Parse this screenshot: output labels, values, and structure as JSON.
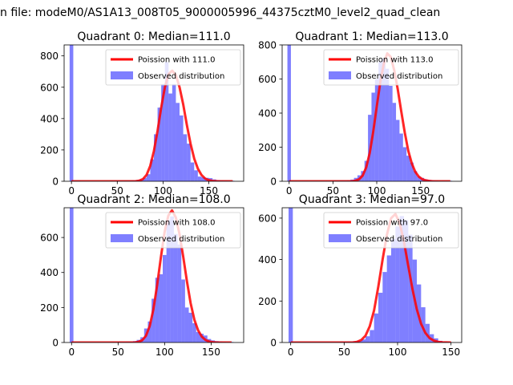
{
  "figure_title": "n file: modeM0/AS1A13_008T05_9000005996_44375cztM0_level2_quad_clean",
  "colors": {
    "poisson": "#ff0000",
    "histogram": "#0000ff",
    "axes": "#000000",
    "background": "#ffffff"
  },
  "chart_data": [
    {
      "type": "bar",
      "title": "Quadrant 0: Median=111.0",
      "xlabel": "",
      "ylabel": "",
      "xlim": [
        -8,
        188
      ],
      "ylim": [
        0,
        870
      ],
      "xticks": [
        0,
        50,
        100,
        150
      ],
      "yticks": [
        0,
        200,
        400,
        600,
        800
      ],
      "grid": false,
      "legend_position": "top-right",
      "legend": [
        "Poission with 111.0",
        "Observed distribution"
      ],
      "median": 111.0,
      "peak": 705,
      "bin_width": 4,
      "series": [
        {
          "name": "Observed distribution",
          "x": [
            0,
            4,
            8,
            12,
            16,
            20,
            24,
            28,
            32,
            36,
            40,
            44,
            48,
            52,
            56,
            60,
            64,
            68,
            72,
            76,
            80,
            84,
            88,
            92,
            96,
            100,
            104,
            108,
            112,
            116,
            120,
            124,
            128,
            132,
            136,
            140,
            144,
            148,
            152,
            156,
            160,
            164,
            168,
            172,
            176
          ],
          "values": [
            870,
            4,
            4,
            3,
            3,
            3,
            3,
            3,
            3,
            3,
            3,
            4,
            4,
            4,
            4,
            5,
            5,
            6,
            8,
            12,
            22,
            45,
            140,
            300,
            470,
            620,
            760,
            560,
            620,
            500,
            420,
            300,
            240,
            120,
            70,
            30,
            25,
            22,
            20,
            12,
            8,
            6,
            5,
            4,
            3
          ]
        },
        {
          "name": "Poission with 111.0",
          "type": "line",
          "x": [
            0,
            70,
            74,
            78,
            82,
            86,
            90,
            94,
            98,
            102,
            106,
            110,
            114,
            118,
            122,
            126,
            130,
            134,
            138,
            142,
            146,
            150,
            154,
            160,
            176
          ],
          "values": [
            0,
            0,
            4,
            14,
            41,
            98,
            193,
            323,
            470,
            600,
            685,
            705,
            678,
            600,
            490,
            360,
            240,
            145,
            80,
            40,
            17,
            7,
            2,
            0,
            0
          ]
        }
      ]
    },
    {
      "type": "bar",
      "title": "Quadrant 1: Median=113.0",
      "xlabel": "",
      "ylabel": "",
      "xlim": [
        -8,
        197
      ],
      "ylim": [
        0,
        800
      ],
      "xticks": [
        0,
        50,
        100,
        150
      ],
      "yticks": [
        0,
        200,
        400,
        600,
        800
      ],
      "grid": false,
      "legend_position": "top-right",
      "legend": [
        "Poission with 113.0",
        "Observed distribution"
      ],
      "median": 113.0,
      "peak": 750,
      "bin_width": 4,
      "series": [
        {
          "name": "Observed distribution",
          "x": [
            0,
            4,
            8,
            12,
            16,
            20,
            24,
            28,
            32,
            36,
            40,
            44,
            48,
            52,
            56,
            60,
            64,
            68,
            72,
            76,
            80,
            84,
            88,
            92,
            96,
            100,
            104,
            108,
            112,
            116,
            120,
            124,
            128,
            132,
            136,
            140,
            144,
            148,
            152,
            156,
            160,
            164,
            168,
            172,
            176,
            180,
            184
          ],
          "values": [
            800,
            3,
            3,
            3,
            3,
            3,
            3,
            3,
            3,
            3,
            3,
            3,
            3,
            4,
            4,
            5,
            5,
            6,
            10,
            20,
            35,
            60,
            120,
            390,
            520,
            600,
            700,
            720,
            660,
            560,
            460,
            360,
            280,
            200,
            150,
            110,
            60,
            30,
            20,
            12,
            8,
            6,
            4,
            3,
            3,
            3,
            3
          ]
        },
        {
          "name": "Poission with 113.0",
          "type": "line",
          "x": [
            0,
            72,
            76,
            80,
            84,
            88,
            92,
            96,
            100,
            104,
            108,
            112,
            116,
            120,
            124,
            128,
            132,
            136,
            140,
            144,
            148,
            152,
            156,
            160,
            164,
            184
          ],
          "values": [
            0,
            0,
            4,
            12,
            34,
            82,
            167,
            290,
            438,
            580,
            690,
            750,
            730,
            650,
            540,
            410,
            285,
            180,
            105,
            55,
            27,
            12,
            5,
            2,
            0,
            0
          ]
        }
      ]
    },
    {
      "type": "bar",
      "title": "Quadrant 2: Median=108.0",
      "xlabel": "",
      "ylabel": "",
      "xlim": [
        -8,
        185
      ],
      "ylim": [
        0,
        770
      ],
      "xticks": [
        0,
        50,
        100,
        150
      ],
      "yticks": [
        0,
        200,
        400,
        600
      ],
      "grid": false,
      "legend_position": "top-right",
      "legend": [
        "Poission with 108.0",
        "Observed distribution"
      ],
      "median": 108.0,
      "peak": 755,
      "bin_width": 4,
      "series": [
        {
          "name": "Observed distribution",
          "x": [
            0,
            4,
            8,
            12,
            16,
            20,
            24,
            28,
            32,
            36,
            40,
            44,
            48,
            52,
            56,
            60,
            64,
            68,
            72,
            76,
            80,
            84,
            88,
            92,
            96,
            100,
            104,
            108,
            112,
            116,
            120,
            124,
            128,
            132,
            136,
            140,
            144,
            148,
            152,
            156,
            160,
            164,
            168,
            172
          ],
          "values": [
            770,
            3,
            3,
            3,
            3,
            3,
            3,
            3,
            3,
            3,
            3,
            3,
            3,
            4,
            4,
            5,
            5,
            8,
            15,
            30,
            80,
            120,
            250,
            370,
            390,
            500,
            700,
            720,
            620,
            560,
            360,
            200,
            170,
            110,
            60,
            50,
            40,
            20,
            12,
            8,
            6,
            4,
            3,
            3
          ]
        },
        {
          "name": "Poission with 108.0",
          "type": "line",
          "x": [
            0,
            68,
            72,
            76,
            80,
            84,
            88,
            92,
            96,
            100,
            104,
            108,
            112,
            116,
            120,
            124,
            128,
            132,
            136,
            140,
            144,
            148,
            152,
            156,
            172
          ],
          "values": [
            0,
            0,
            4,
            13,
            38,
            94,
            190,
            330,
            486,
            630,
            725,
            755,
            715,
            620,
            490,
            350,
            225,
            130,
            70,
            33,
            14,
            5,
            2,
            0,
            0
          ]
        }
      ]
    },
    {
      "type": "bar",
      "title": "Quadrant 3: Median=97.0",
      "xlabel": "",
      "ylabel": "",
      "xlim": [
        -8,
        160
      ],
      "ylim": [
        0,
        650
      ],
      "xticks": [
        0,
        50,
        100,
        150
      ],
      "yticks": [
        0,
        200,
        400,
        600
      ],
      "grid": false,
      "legend_position": "top-right",
      "legend": [
        "Poission with 97.0",
        "Observed distribution"
      ],
      "median": 97.0,
      "peak": 620,
      "bin_width": 4,
      "series": [
        {
          "name": "Observed distribution",
          "x": [
            0,
            4,
            8,
            12,
            16,
            20,
            24,
            28,
            32,
            36,
            40,
            44,
            48,
            52,
            56,
            60,
            64,
            68,
            72,
            76,
            80,
            84,
            88,
            92,
            96,
            100,
            104,
            108,
            112,
            116,
            120,
            124,
            128,
            132,
            136,
            140,
            144,
            148
          ],
          "values": [
            650,
            3,
            3,
            3,
            3,
            3,
            3,
            3,
            3,
            3,
            3,
            3,
            4,
            4,
            5,
            6,
            8,
            15,
            30,
            60,
            140,
            240,
            340,
            420,
            500,
            560,
            610,
            590,
            520,
            400,
            280,
            170,
            90,
            40,
            20,
            8,
            4,
            3
          ]
        },
        {
          "name": "Poission with 97.0",
          "type": "line",
          "x": [
            0,
            58,
            62,
            66,
            70,
            74,
            78,
            82,
            86,
            90,
            94,
            98,
            102,
            106,
            110,
            114,
            118,
            122,
            126,
            130,
            134,
            138,
            142,
            150
          ],
          "values": [
            0,
            0,
            3,
            12,
            33,
            78,
            155,
            270,
            400,
            520,
            600,
            620,
            575,
            485,
            370,
            255,
            160,
            90,
            46,
            21,
            9,
            3,
            1,
            0
          ]
        }
      ]
    }
  ]
}
